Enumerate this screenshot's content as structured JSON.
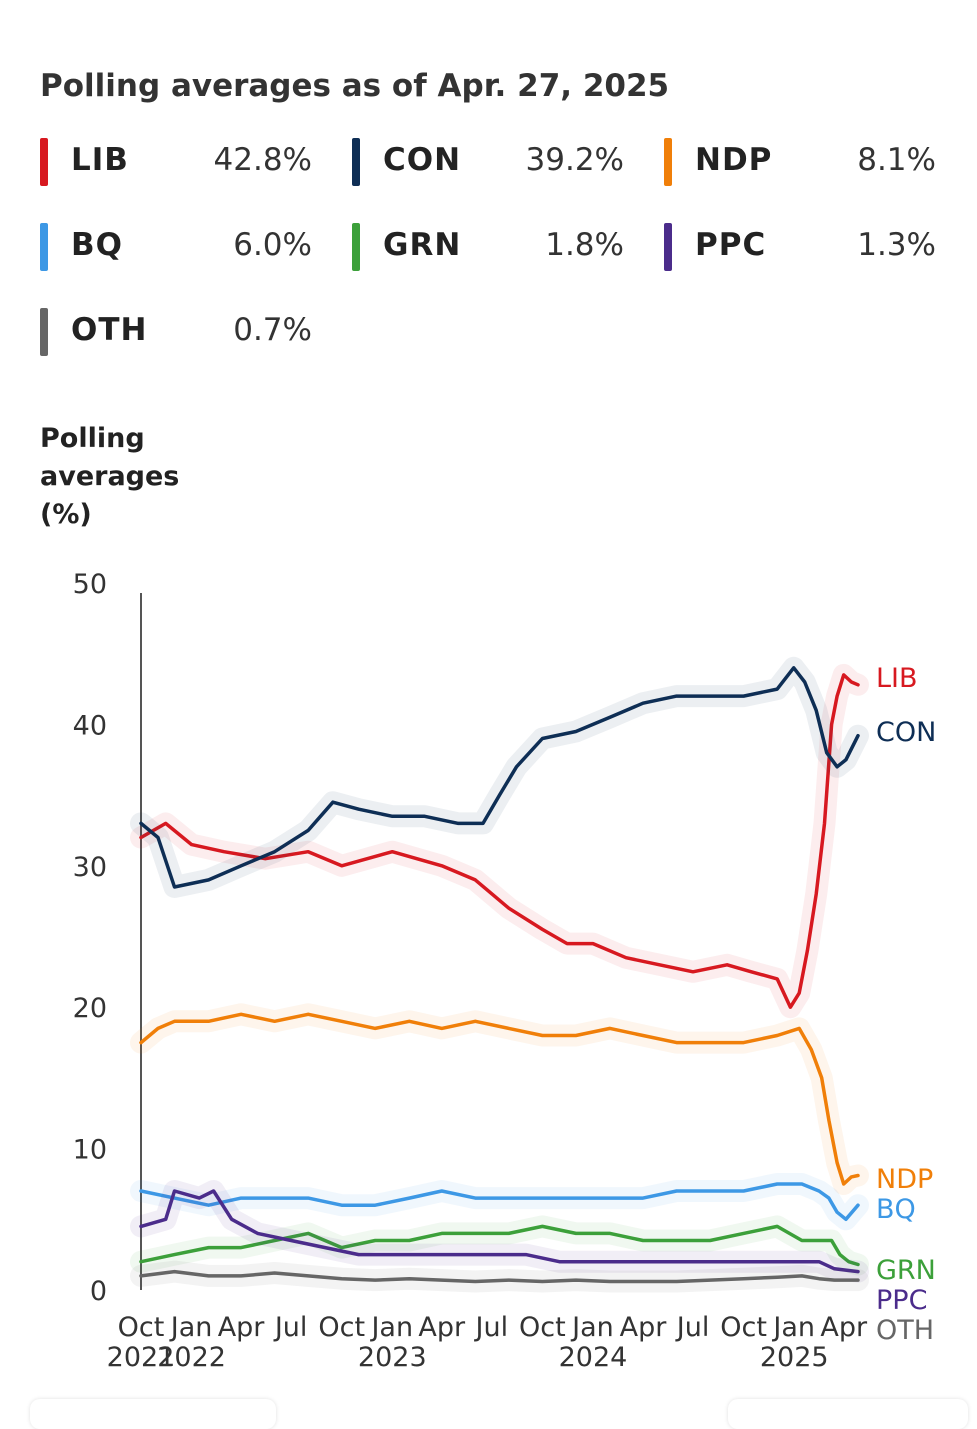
{
  "header": {
    "title": "Polling averages as of Apr. 27, 2025"
  },
  "legend": [
    {
      "name": "LIB",
      "value": "42.8%",
      "color": "#d71920"
    },
    {
      "name": "CON",
      "value": "39.2%",
      "color": "#0e2e55"
    },
    {
      "name": "NDP",
      "value": "8.1%",
      "color": "#f07f09"
    },
    {
      "name": "BQ",
      "value": "6.0%",
      "color": "#3d98e5"
    },
    {
      "name": "GRN",
      "value": "1.8%",
      "color": "#3ca03a"
    },
    {
      "name": "PPC",
      "value": "1.3%",
      "color": "#4b2c8b"
    },
    {
      "name": "OTH",
      "value": "0.7%",
      "color": "#666666"
    }
  ],
  "chart_data": {
    "type": "line",
    "ylabel": "Polling averages (%)",
    "ylim": [
      0,
      50
    ],
    "yticks": [
      0,
      10,
      20,
      30,
      40,
      50
    ],
    "xrange": [
      "2021-10-01",
      "2025-04-27"
    ],
    "xticks": [
      {
        "date": "2021-10-01",
        "label": "Oct",
        "year": "2021"
      },
      {
        "date": "2022-01-01",
        "label": "Jan",
        "year": "2022"
      },
      {
        "date": "2022-04-01",
        "label": "Apr",
        "year": ""
      },
      {
        "date": "2022-07-01",
        "label": "Jul",
        "year": ""
      },
      {
        "date": "2022-10-01",
        "label": "Oct",
        "year": ""
      },
      {
        "date": "2023-01-01",
        "label": "Jan",
        "year": "2023"
      },
      {
        "date": "2023-04-01",
        "label": "Apr",
        "year": ""
      },
      {
        "date": "2023-07-01",
        "label": "Jul",
        "year": ""
      },
      {
        "date": "2023-10-01",
        "label": "Oct",
        "year": ""
      },
      {
        "date": "2024-01-01",
        "label": "Jan",
        "year": "2024"
      },
      {
        "date": "2024-04-01",
        "label": "Apr",
        "year": ""
      },
      {
        "date": "2024-07-01",
        "label": "Jul",
        "year": ""
      },
      {
        "date": "2024-10-01",
        "label": "Oct",
        "year": ""
      },
      {
        "date": "2025-01-01",
        "label": "Jan",
        "year": "2025"
      },
      {
        "date": "2025-04-01",
        "label": "Apr",
        "year": ""
      }
    ],
    "series": [
      {
        "name": "LIB",
        "color": "#d71920",
        "x": [
          "2021-10-01",
          "2021-11-15",
          "2022-01-01",
          "2022-03-01",
          "2022-05-15",
          "2022-08-01",
          "2022-10-01",
          "2023-01-01",
          "2023-04-01",
          "2023-06-01",
          "2023-08-01",
          "2023-10-01",
          "2023-11-15",
          "2024-01-01",
          "2024-03-01",
          "2024-05-01",
          "2024-07-01",
          "2024-09-01",
          "2024-10-15",
          "2024-12-01",
          "2024-12-25",
          "2025-01-10",
          "2025-01-25",
          "2025-02-10",
          "2025-02-25",
          "2025-03-10",
          "2025-03-20",
          "2025-04-01",
          "2025-04-15",
          "2025-04-27"
        ],
        "y": [
          32,
          33,
          31.5,
          31,
          30.5,
          31,
          30,
          31,
          30,
          29,
          27,
          25.5,
          24.5,
          24.5,
          23.5,
          23,
          22.5,
          23,
          22.5,
          22,
          20,
          21,
          24,
          28,
          33,
          40,
          42,
          43.5,
          43,
          42.8
        ]
      },
      {
        "name": "CON",
        "color": "#0e2e55",
        "x": [
          "2021-10-01",
          "2021-11-01",
          "2021-12-01",
          "2022-02-01",
          "2022-04-01",
          "2022-06-01",
          "2022-08-01",
          "2022-09-15",
          "2022-11-01",
          "2023-01-01",
          "2023-03-01",
          "2023-05-01",
          "2023-06-15",
          "2023-07-15",
          "2023-08-15",
          "2023-10-01",
          "2023-12-01",
          "2024-02-01",
          "2024-04-01",
          "2024-06-01",
          "2024-08-01",
          "2024-10-01",
          "2024-12-01",
          "2024-12-31",
          "2025-01-20",
          "2025-02-10",
          "2025-03-01",
          "2025-03-20",
          "2025-04-05",
          "2025-04-27"
        ],
        "y": [
          33,
          32,
          28.5,
          29,
          30,
          31,
          32.5,
          34.5,
          34,
          33.5,
          33.5,
          33,
          33,
          35,
          37,
          39,
          39.5,
          40.5,
          41.5,
          42,
          42,
          42,
          42.5,
          44,
          43,
          41,
          38,
          37,
          37.5,
          39.2
        ]
      },
      {
        "name": "NDP",
        "color": "#f07f09",
        "x": [
          "2021-10-01",
          "2021-11-01",
          "2021-12-01",
          "2022-02-01",
          "2022-04-01",
          "2022-06-01",
          "2022-08-01",
          "2022-10-01",
          "2022-12-01",
          "2023-02-01",
          "2023-04-01",
          "2023-06-01",
          "2023-08-01",
          "2023-10-01",
          "2023-12-01",
          "2024-02-01",
          "2024-04-01",
          "2024-06-01",
          "2024-08-01",
          "2024-10-01",
          "2024-12-01",
          "2025-01-10",
          "2025-02-01",
          "2025-02-20",
          "2025-03-05",
          "2025-03-20",
          "2025-04-01",
          "2025-04-15",
          "2025-04-27"
        ],
        "y": [
          17.5,
          18.5,
          19,
          19,
          19.5,
          19,
          19.5,
          19,
          18.5,
          19,
          18.5,
          19,
          18.5,
          18,
          18,
          18.5,
          18,
          17.5,
          17.5,
          17.5,
          18,
          18.5,
          17,
          15,
          12,
          9,
          7.5,
          8,
          8.1
        ]
      },
      {
        "name": "BQ",
        "color": "#3d98e5",
        "x": [
          "2021-10-01",
          "2021-12-01",
          "2022-02-01",
          "2022-04-01",
          "2022-06-01",
          "2022-08-01",
          "2022-10-01",
          "2022-12-01",
          "2023-02-01",
          "2023-04-01",
          "2023-06-01",
          "2023-08-01",
          "2023-10-01",
          "2023-12-01",
          "2024-02-01",
          "2024-04-01",
          "2024-06-01",
          "2024-08-01",
          "2024-10-01",
          "2024-12-01",
          "2025-01-15",
          "2025-02-15",
          "2025-03-05",
          "2025-03-20",
          "2025-04-05",
          "2025-04-27"
        ],
        "y": [
          7,
          6.5,
          6,
          6.5,
          6.5,
          6.5,
          6,
          6,
          6.5,
          7,
          6.5,
          6.5,
          6.5,
          6.5,
          6.5,
          6.5,
          7,
          7,
          7,
          7.5,
          7.5,
          7,
          6.5,
          5.5,
          5,
          6.0
        ]
      },
      {
        "name": "GRN",
        "color": "#3ca03a",
        "x": [
          "2021-10-01",
          "2021-12-01",
          "2022-02-01",
          "2022-04-01",
          "2022-06-01",
          "2022-08-01",
          "2022-10-01",
          "2022-12-01",
          "2023-02-01",
          "2023-04-01",
          "2023-06-01",
          "2023-08-01",
          "2023-10-01",
          "2023-12-01",
          "2024-02-01",
          "2024-04-01",
          "2024-06-01",
          "2024-08-01",
          "2024-10-01",
          "2024-12-01",
          "2025-01-15",
          "2025-02-15",
          "2025-03-10",
          "2025-03-25",
          "2025-04-10",
          "2025-04-27"
        ],
        "y": [
          2,
          2.5,
          3,
          3,
          3.5,
          4,
          3,
          3.5,
          3.5,
          4,
          4,
          4,
          4.5,
          4,
          4,
          3.5,
          3.5,
          3.5,
          4,
          4.5,
          3.5,
          3.5,
          3.5,
          2.5,
          2,
          1.8
        ]
      },
      {
        "name": "PPC",
        "color": "#4b2c8b",
        "x": [
          "2021-10-01",
          "2021-11-15",
          "2021-12-01",
          "2022-01-15",
          "2022-02-10",
          "2022-03-15",
          "2022-05-01",
          "2022-07-01",
          "2022-09-01",
          "2022-11-01",
          "2023-01-01",
          "2023-03-01",
          "2023-05-01",
          "2023-07-01",
          "2023-09-01",
          "2023-11-01",
          "2024-01-01",
          "2024-03-01",
          "2024-05-01",
          "2024-07-01",
          "2024-09-01",
          "2024-11-01",
          "2025-01-01",
          "2025-02-15",
          "2025-03-15",
          "2025-04-27"
        ],
        "y": [
          4.5,
          5,
          7,
          6.5,
          7,
          5,
          4,
          3.5,
          3,
          2.5,
          2.5,
          2.5,
          2.5,
          2.5,
          2.5,
          2,
          2,
          2,
          2,
          2,
          2,
          2,
          2,
          2,
          1.5,
          1.3
        ]
      },
      {
        "name": "OTH",
        "color": "#666666",
        "x": [
          "2021-10-01",
          "2021-12-01",
          "2022-02-01",
          "2022-04-01",
          "2022-06-01",
          "2022-08-01",
          "2022-10-01",
          "2022-12-01",
          "2023-02-01",
          "2023-04-01",
          "2023-06-01",
          "2023-08-01",
          "2023-10-01",
          "2023-12-01",
          "2024-02-01",
          "2024-04-01",
          "2024-06-01",
          "2024-08-01",
          "2024-10-01",
          "2024-12-01",
          "2025-01-15",
          "2025-02-15",
          "2025-03-15",
          "2025-04-27"
        ],
        "y": [
          1,
          1.3,
          1,
          1,
          1.2,
          1,
          0.8,
          0.7,
          0.8,
          0.7,
          0.6,
          0.7,
          0.6,
          0.7,
          0.6,
          0.6,
          0.6,
          0.7,
          0.8,
          0.9,
          1,
          0.8,
          0.7,
          0.7
        ]
      }
    ]
  }
}
